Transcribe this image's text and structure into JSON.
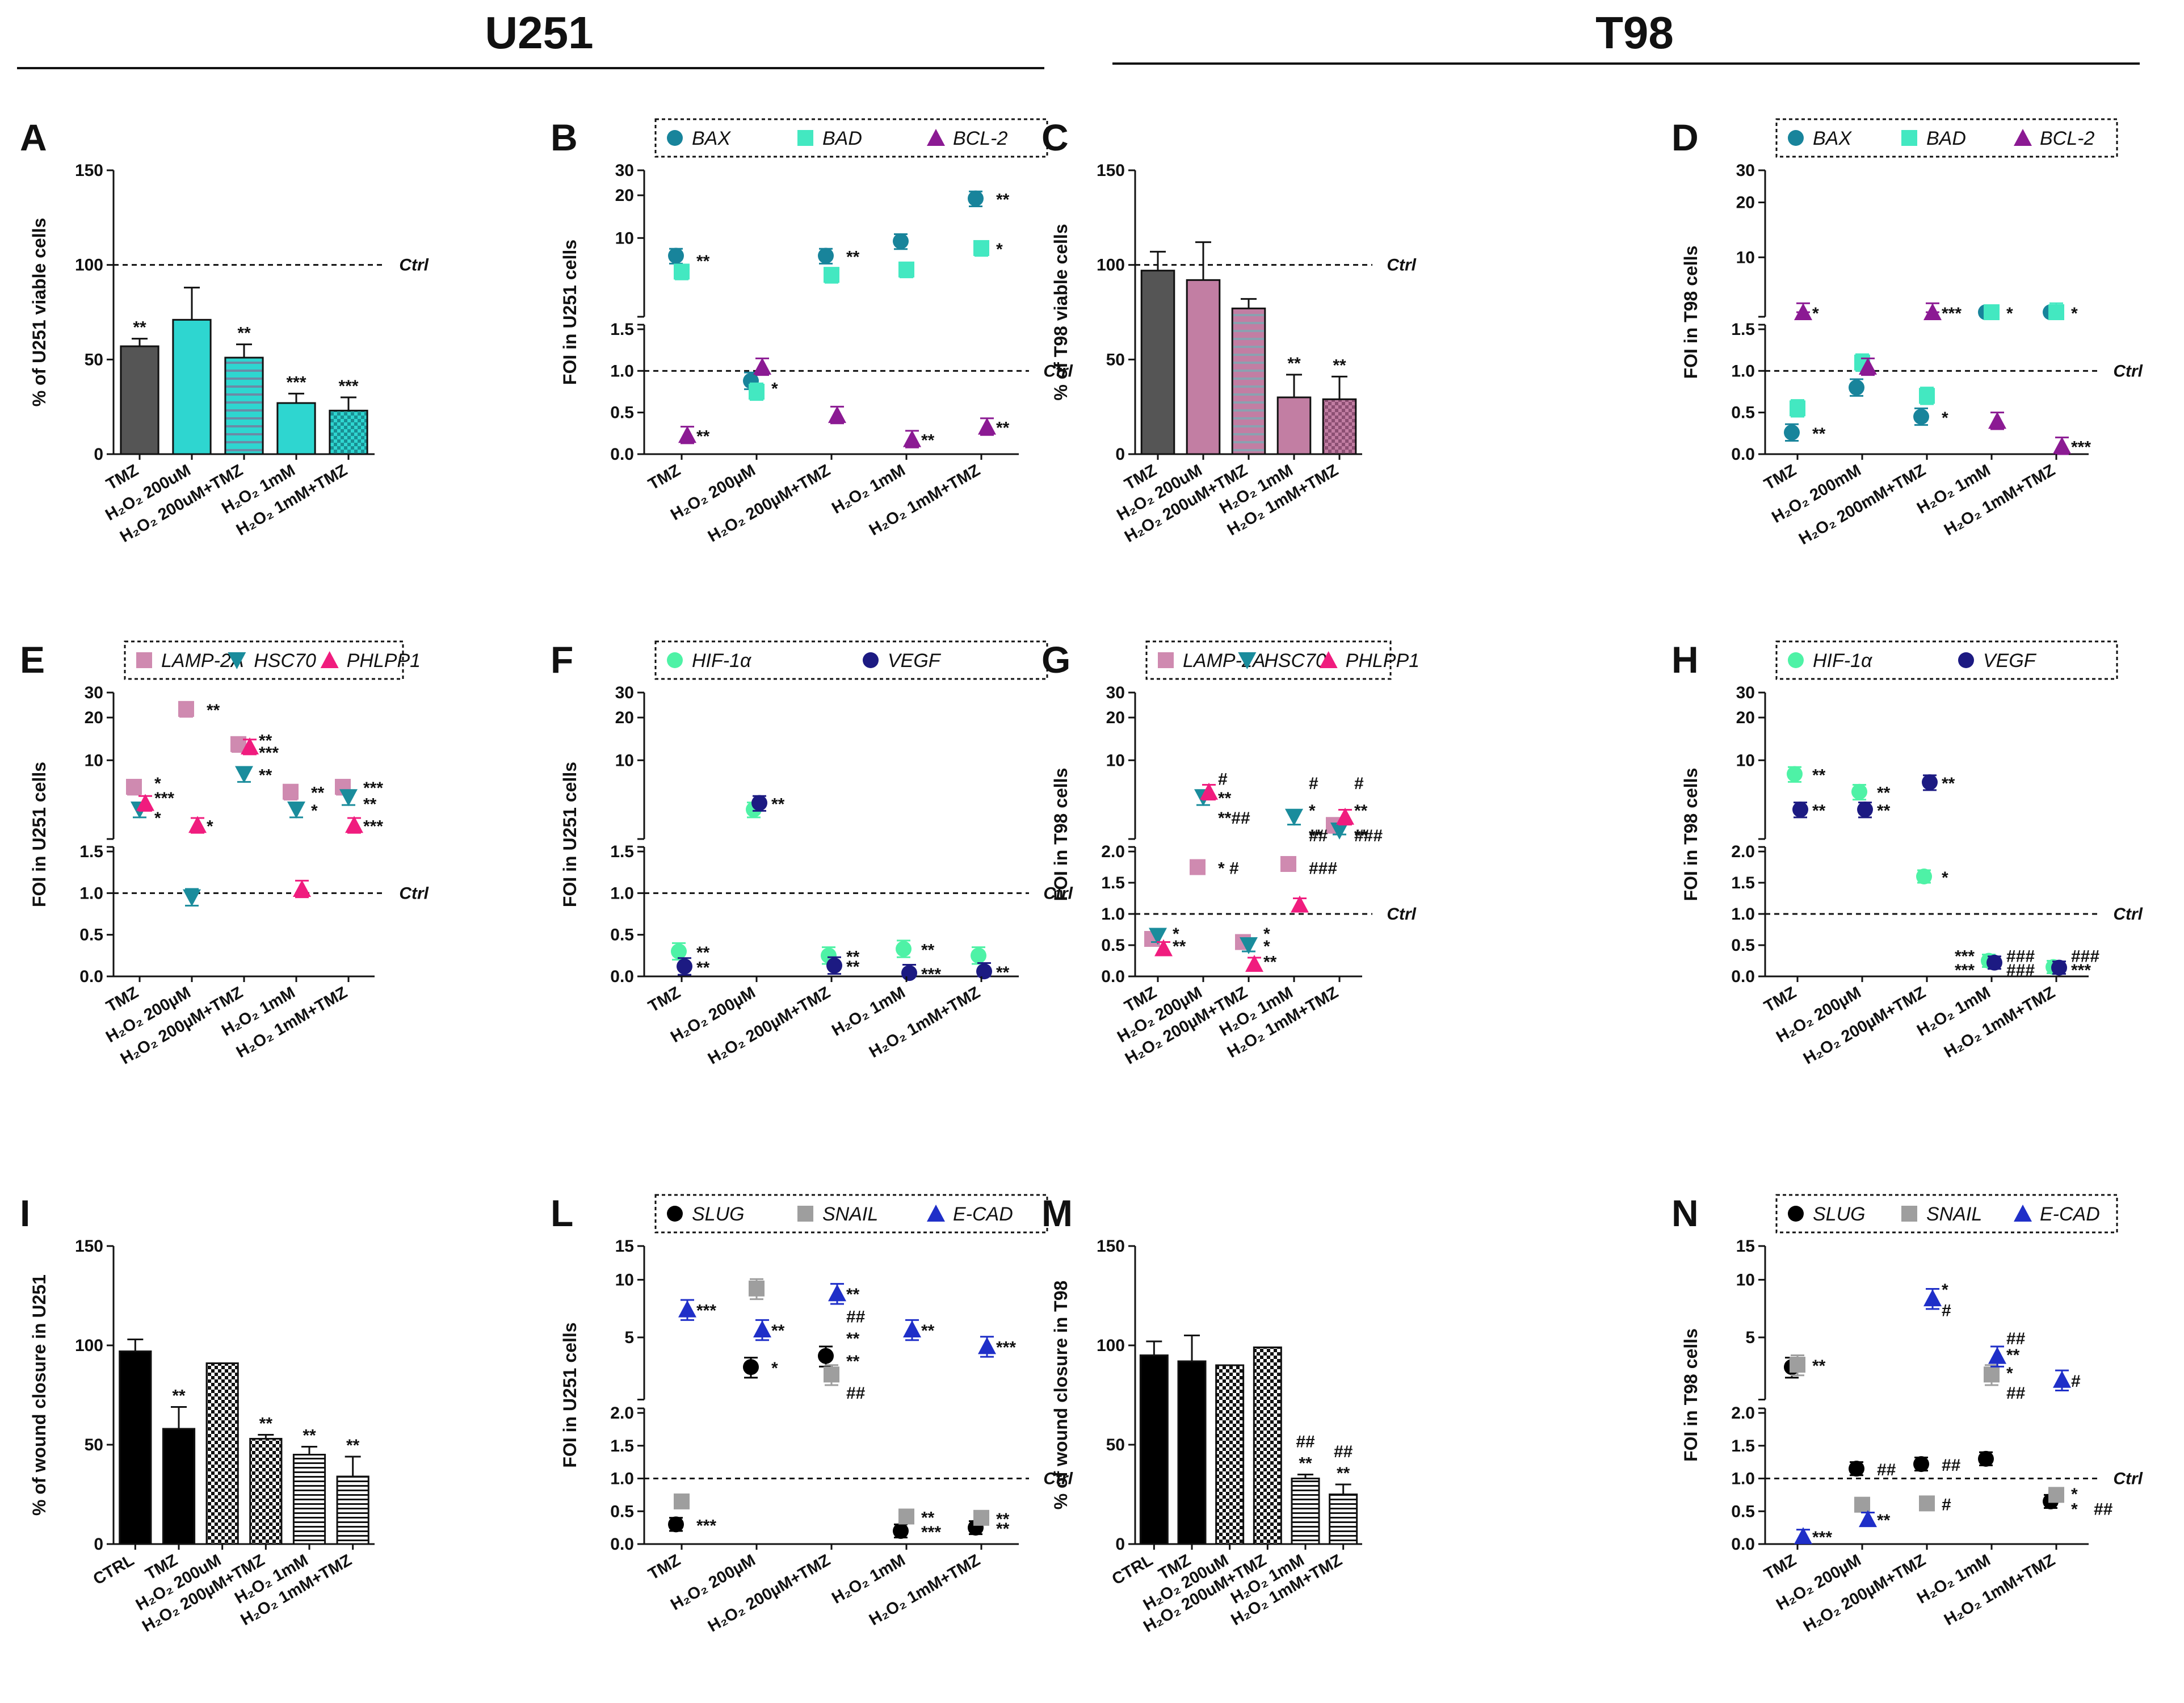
{
  "headers": {
    "left": "U251",
    "right": "T98"
  },
  "ctrl_label": "Ctrl",
  "colors": {
    "bar_gray": "#555555",
    "cyan": "#2ed6d0",
    "pink": "#c27ea3",
    "black": "#000000",
    "BAX": "#18849b",
    "BAD": "#43e8c1",
    "BCL-2": "#8b1a93",
    "LAMP-2A": "#cf8ab0",
    "HSC70": "#1a8c9c",
    "PHLPP1": "#f01c7e",
    "HIF-1a": "#4ef2a6",
    "VEGF": "#1c1a82",
    "SLUG": "#000000",
    "SNAIL": "#9e9e9e",
    "E-CAD": "#1f2fc8"
  },
  "chart_data": [
    {
      "letter": "A",
      "type": "bar",
      "ylabel": "% of U251 viable cells",
      "ylim": [
        0,
        150
      ],
      "yticks": [
        "0",
        "50",
        "100",
        "150"
      ],
      "ctrl_line": 100,
      "categories": [
        "TMZ",
        "H2O2 200uM",
        "H2O2 200uM+TMZ",
        "H2O2 1mM",
        "H2O2 1mM+TMZ"
      ],
      "values": [
        57,
        71,
        51,
        27,
        23
      ],
      "errors": [
        4,
        17,
        7,
        5,
        7
      ],
      "sig": [
        "**",
        "",
        "**",
        "***",
        "***"
      ],
      "fills": [
        "gray",
        "cyan",
        "cyan-hatch",
        "cyan",
        "cyan-check"
      ]
    },
    {
      "letter": "B",
      "type": "scatter",
      "ylabel": "FOI in U251 cells",
      "legend": [
        "BAX",
        "BAD",
        "BCL-2"
      ],
      "categories": [
        "TMZ",
        "H2O2 200µM",
        "H2O2 200µM+TMZ",
        "H2O2 1mM",
        "H2O2 1mM+TMZ"
      ],
      "series": [
        {
          "name": "BAX",
          "values": [
            7.5,
            0.88,
            7.5,
            9.5,
            19
          ]
        },
        {
          "name": "BAD",
          "values": [
            5.8,
            0.75,
            5.5,
            6.0,
            8.5
          ]
        },
        {
          "name": "BCL-2",
          "values": [
            0.23,
            1.05,
            0.47,
            0.18,
            0.33
          ]
        }
      ],
      "sig": [
        {
          "cat": 0,
          "y": 7,
          "t": "**"
        },
        {
          "cat": 1,
          "y": 0.8,
          "t": "*"
        },
        {
          "cat": 2,
          "y": 7.5,
          "t": "**"
        },
        {
          "cat": 4,
          "y": 19,
          "t": "**"
        },
        {
          "cat": 4,
          "y": 8.5,
          "t": "*"
        },
        {
          "cat": 0,
          "y": 0.23,
          "t": "**"
        },
        {
          "cat": 3,
          "y": 0.18,
          "t": "**"
        },
        {
          "cat": 4,
          "y": 0.33,
          "t": "**"
        }
      ]
    },
    {
      "letter": "C",
      "type": "bar",
      "ylabel": "% of T98 viable cells",
      "ylim": [
        0,
        150
      ],
      "yticks": [
        "0",
        "50",
        "100",
        "150"
      ],
      "ctrl_line": 100,
      "categories": [
        "TMZ",
        "H2O2 200uM",
        "H2O2 200uM+TMZ",
        "H2O2 1mM",
        "H2O2 1mM+TMZ"
      ],
      "values": [
        97,
        92,
        77,
        30,
        29
      ],
      "errors": [
        10,
        20,
        5,
        12,
        12
      ],
      "sig": [
        "",
        "",
        "",
        "**",
        "**"
      ],
      "fills": [
        "gray",
        "pink",
        "pink-hatch",
        "pink",
        "pink-check"
      ]
    },
    {
      "letter": "D",
      "type": "scatter",
      "ylabel": "FOI in T98 cells",
      "legend": [
        "BAX",
        "BAD",
        "BCL-2"
      ],
      "categories": [
        "TMZ",
        "H2O2 200mM",
        "H2O2 200mM+TMZ",
        "H2O2 1mM",
        "H2O2 1mM+TMZ"
      ],
      "series": [
        {
          "name": "BAX",
          "values": [
            0.26,
            0.8,
            0.45,
            3.8,
            4.0
          ]
        },
        {
          "name": "BAD",
          "values": [
            0.55,
            1.1,
            0.7,
            4.2,
            5.0
          ]
        },
        {
          "name": "BCL-2",
          "values": [
            5.0,
            1.05,
            5.0,
            0.4,
            0.1
          ]
        }
      ],
      "sig": [
        {
          "cat": 0,
          "y": 0.26,
          "t": "**"
        },
        {
          "cat": 2,
          "y": 0.45,
          "t": "*"
        },
        {
          "cat": 3,
          "y": 3.8,
          "t": "*"
        },
        {
          "cat": 4,
          "y": 4,
          "t": "*"
        },
        {
          "cat": 0,
          "y": 5,
          "t": "*"
        },
        {
          "cat": 2,
          "y": 5,
          "t": "***"
        },
        {
          "cat": 4,
          "y": 0.1,
          "t": "***"
        }
      ]
    },
    {
      "letter": "E",
      "type": "scatter",
      "ylabel": "FOI in U251 cells",
      "legend": [
        "LAMP-2A",
        "HSC70",
        "PHLPP1"
      ],
      "categories": [
        "TMZ",
        "H2O2 200µM",
        "H2O2 200µM+TMZ",
        "H2O2 1mM",
        "H2O2 1mM+TMZ"
      ],
      "series": [
        {
          "name": "LAMP-2A",
          "values": [
            6.5,
            23,
            13,
            6,
            6.5
          ]
        },
        {
          "name": "HSC70",
          "values": [
            4.5,
            0.95,
            8,
            4.5,
            5.5
          ]
        },
        {
          "name": "PHLPP1",
          "values": [
            5.0,
            3.5,
            12.5,
            1.05,
            3.5
          ]
        }
      ],
      "sig": [
        {
          "cat": 0,
          "y": 7,
          "t": "*"
        },
        {
          "cat": 0,
          "y": 5.5,
          "t": "***"
        },
        {
          "cat": 0,
          "y": 4,
          "t": "*"
        },
        {
          "cat": 1,
          "y": 23,
          "t": "**"
        },
        {
          "cat": 1,
          "y": 3.5,
          "t": "*"
        },
        {
          "cat": 2,
          "y": 14,
          "t": "**"
        },
        {
          "cat": 2,
          "y": 11.5,
          "t": "***"
        },
        {
          "cat": 2,
          "y": 8,
          "t": "**"
        },
        {
          "cat": 3,
          "y": 6,
          "t": "**"
        },
        {
          "cat": 3,
          "y": 4.5,
          "t": "*"
        },
        {
          "cat": 4,
          "y": 6.5,
          "t": "***"
        },
        {
          "cat": 4,
          "y": 5,
          "t": "**"
        },
        {
          "cat": 4,
          "y": 3.5,
          "t": "***"
        }
      ]
    },
    {
      "letter": "F",
      "type": "scatter",
      "ylabel": "FOI in U251 cells",
      "legend": [
        "HIF-1α",
        "VEGF"
      ],
      "categories": [
        "TMZ",
        "H2O2 200µM",
        "H2O2 200µM+TMZ",
        "H2O2 1mM",
        "H2O2 1mM+TMZ"
      ],
      "series": [
        {
          "name": "HIF-1α",
          "values": [
            0.3,
            4.5,
            0.25,
            0.33,
            0.25
          ]
        },
        {
          "name": "VEGF",
          "values": [
            0.12,
            5.0,
            0.13,
            0.04,
            0.06
          ]
        }
      ],
      "sig": [
        {
          "cat": 0,
          "y": 0.3,
          "t": "**"
        },
        {
          "cat": 0,
          "y": 0.12,
          "t": "**"
        },
        {
          "cat": 1,
          "y": 5,
          "t": "**"
        },
        {
          "cat": 2,
          "y": 0.25,
          "t": "**"
        },
        {
          "cat": 2,
          "y": 0.13,
          "t": "**"
        },
        {
          "cat": 3,
          "y": 0.33,
          "t": "**"
        },
        {
          "cat": 3,
          "y": 0.04,
          "t": "***"
        },
        {
          "cat": 4,
          "y": 0.06,
          "t": "**"
        }
      ]
    },
    {
      "letter": "G",
      "type": "scatter",
      "ylabel": "FOI in T98 cells",
      "legend": [
        "LAMP-2A",
        "HSC70",
        "PHLPP1"
      ],
      "categories": [
        "TMZ",
        "H2O2 200µM",
        "H2O2 200µM+TMZ",
        "H2O2 1mM",
        "H2O2 1mM+TMZ"
      ],
      "series": [
        {
          "name": "LAMP-2A",
          "values": [
            0.6,
            1.75,
            0.55,
            1.8,
            3.5
          ]
        },
        {
          "name": "HSC70",
          "values": [
            0.65,
            5.5,
            0.5,
            4.0,
            3.2
          ]
        },
        {
          "name": "PHLPP1",
          "values": [
            0.45,
            6.0,
            0.2,
            1.15,
            4.0
          ]
        }
      ],
      "sig": [
        {
          "cat": 0,
          "y": 0.7,
          "t": "*"
        },
        {
          "cat": 0,
          "y": 0.5,
          "t": "**"
        },
        {
          "cat": 1,
          "y": 7.5,
          "t": "#"
        },
        {
          "cat": 1,
          "y": 5.5,
          "t": "**"
        },
        {
          "cat": 1,
          "y": 4,
          "t": "**##"
        },
        {
          "cat": 1,
          "y": 1.75,
          "t": "* #"
        },
        {
          "cat": 2,
          "y": 0.7,
          "t": "*"
        },
        {
          "cat": 2,
          "y": 0.5,
          "t": "*"
        },
        {
          "cat": 2,
          "y": 0.25,
          "t": "**"
        },
        {
          "cat": 3,
          "y": 7,
          "t": "#"
        },
        {
          "cat": 3,
          "y": 4.5,
          "t": "*"
        },
        {
          "cat": 3,
          "y": 3,
          "t": "**"
        },
        {
          "cat": 3,
          "y": 2.1,
          "t": "##"
        },
        {
          "cat": 3,
          "y": 1.75,
          "t": "###"
        },
        {
          "cat": 4,
          "y": 7,
          "t": "#"
        },
        {
          "cat": 4,
          "y": 4.5,
          "t": "**"
        },
        {
          "cat": 4,
          "y": 3,
          "t": "**"
        },
        {
          "cat": 4,
          "y": 2.1,
          "t": "###"
        }
      ]
    },
    {
      "letter": "H",
      "type": "scatter",
      "ylabel": "FOI in T98 cells",
      "legend": [
        "HIF-1α",
        "VEGF"
      ],
      "categories": [
        "TMZ",
        "H2O2 200µM",
        "H2O2 200µM+TMZ",
        "H2O2 1mM",
        "H2O2 1mM+TMZ"
      ],
      "series": [
        {
          "name": "HIF-1α",
          "values": [
            8,
            6,
            1.6,
            0.25,
            0.15
          ]
        },
        {
          "name": "VEGF",
          "values": [
            4.5,
            4.5,
            7.0,
            0.22,
            0.14
          ]
        }
      ],
      "sig": [
        {
          "cat": 0,
          "y": 8,
          "t": "**"
        },
        {
          "cat": 0,
          "y": 4.5,
          "t": "**"
        },
        {
          "cat": 1,
          "y": 6,
          "t": "**"
        },
        {
          "cat": 1,
          "y": 4.5,
          "t": "**"
        },
        {
          "cat": 2,
          "y": 7,
          "t": "**"
        },
        {
          "cat": 2,
          "y": 1.6,
          "t": "*"
        },
        {
          "cat": 3,
          "y": 0.34,
          "t": "***",
          "side": "left"
        },
        {
          "cat": 3,
          "y": 0.12,
          "t": "***",
          "side": "left"
        },
        {
          "cat": 3,
          "y": 0.34,
          "t": "###"
        },
        {
          "cat": 3,
          "y": 0.12,
          "t": "###"
        },
        {
          "cat": 4,
          "y": 0.34,
          "t": "###"
        },
        {
          "cat": 4,
          "y": 0.12,
          "t": "***"
        }
      ]
    },
    {
      "letter": "I",
      "type": "bar",
      "ylabel": "% of wound closure in U251",
      "ylim": [
        0,
        150
      ],
      "yticks": [
        "0",
        "50",
        "100",
        "150"
      ],
      "categories": [
        "CTRL",
        "TMZ",
        "H2O2 200uM",
        "H2O2 200µM+TMZ",
        "H2O2 1mM",
        "H2O2 1mM+TMZ"
      ],
      "values": [
        97,
        58,
        91,
        53,
        45,
        34
      ],
      "errors": [
        6,
        11,
        0,
        2,
        4,
        10
      ],
      "sig": [
        "",
        "**",
        "",
        "**",
        "**",
        "**"
      ],
      "fills": [
        "black",
        "black",
        "check",
        "check",
        "lines",
        "lines"
      ]
    },
    {
      "letter": "L",
      "type": "scatter",
      "ylabel": "FOI in U251 cells",
      "legend": [
        "SLUG",
        "SNAIL",
        "E-CAD"
      ],
      "categories": [
        "TMZ",
        "H2O2 200µM",
        "H2O2 200µM+TMZ",
        "H2O2 1mM",
        "H2O2 1mM+TMZ"
      ],
      "series": [
        {
          "name": "SLUG",
          "values": [
            0.3,
            3.5,
            4.0,
            0.2,
            0.25
          ]
        },
        {
          "name": "SNAIL",
          "values": [
            0.65,
            9.0,
            3.2,
            0.42,
            0.4
          ]
        },
        {
          "name": "E-CAD",
          "values": [
            7.0,
            5.5,
            8.5,
            5.5,
            4.5
          ]
        }
      ],
      "sig": [
        {
          "cat": 0,
          "y": 7,
          "t": "***"
        },
        {
          "cat": 0,
          "y": 0.3,
          "t": "***"
        },
        {
          "cat": 1,
          "y": 5.5,
          "t": "**"
        },
        {
          "cat": 1,
          "y": 3.5,
          "t": "*"
        },
        {
          "cat": 2,
          "y": 8.5,
          "t": "**"
        },
        {
          "cat": 2,
          "y": 6.5,
          "t": "##"
        },
        {
          "cat": 2,
          "y": 5,
          "t": "**"
        },
        {
          "cat": 2,
          "y": 3.8,
          "t": "**"
        },
        {
          "cat": 2,
          "y": 2.6,
          "t": "##"
        },
        {
          "cat": 3,
          "y": 5.5,
          "t": "**"
        },
        {
          "cat": 3,
          "y": 0.42,
          "t": "**"
        },
        {
          "cat": 3,
          "y": 0.2,
          "t": "***"
        },
        {
          "cat": 4,
          "y": 4.5,
          "t": "***"
        },
        {
          "cat": 4,
          "y": 0.4,
          "t": "**"
        },
        {
          "cat": 4,
          "y": 0.25,
          "t": "**"
        }
      ]
    },
    {
      "letter": "M",
      "type": "bar",
      "ylabel": "% of wound closure in T98",
      "ylim": [
        0,
        150
      ],
      "yticks": [
        "0",
        "50",
        "100",
        "150"
      ],
      "categories": [
        "CTRL",
        "TMZ",
        "H2O2 200uM",
        "H2O2 200uM+TMZ",
        "H2O2 1mM",
        "H2O2 1mM+TMZ"
      ],
      "values": [
        95,
        92,
        90,
        99,
        33,
        25
      ],
      "errors": [
        7,
        13,
        0,
        0,
        2,
        5
      ],
      "sig": [
        "",
        "",
        "",
        "",
        "**",
        "**"
      ],
      "sig2": [
        "",
        "",
        "",
        "",
        "##",
        "##"
      ],
      "fills": [
        "black",
        "black",
        "check",
        "check",
        "lines",
        "lines"
      ]
    },
    {
      "letter": "N",
      "type": "scatter",
      "ylabel": "FOI in T98 cells",
      "legend": [
        "SLUG",
        "SNAIL",
        "E-CAD"
      ],
      "categories": [
        "TMZ",
        "H2O2 200µM",
        "H2O2 200µM+TMZ",
        "H2O2 1mM",
        "H2O2 1mM+TMZ"
      ],
      "series": [
        {
          "name": "SLUG",
          "values": [
            3.5,
            1.15,
            1.22,
            1.3,
            0.65
          ]
        },
        {
          "name": "SNAIL",
          "values": [
            3.6,
            0.6,
            0.62,
            3.2,
            0.75
          ]
        },
        {
          "name": "E-CAD",
          "values": [
            0.12,
            0.38,
            8.0,
            4.0,
            3.0
          ]
        }
      ],
      "sig": [
        {
          "cat": 0,
          "y": 3.6,
          "t": "**"
        },
        {
          "cat": 0,
          "y": 0.12,
          "t": "***"
        },
        {
          "cat": 1,
          "y": 1.15,
          "t": "##"
        },
        {
          "cat": 1,
          "y": 0.38,
          "t": "**"
        },
        {
          "cat": 2,
          "y": 9,
          "t": "*"
        },
        {
          "cat": 2,
          "y": 7,
          "t": "#"
        },
        {
          "cat": 2,
          "y": 1.22,
          "t": "##"
        },
        {
          "cat": 2,
          "y": 0.62,
          "t": "#"
        },
        {
          "cat": 3,
          "y": 5,
          "t": "##"
        },
        {
          "cat": 3,
          "y": 4.1,
          "t": "**"
        },
        {
          "cat": 3,
          "y": 3.3,
          "t": "*"
        },
        {
          "cat": 3,
          "y": 2.6,
          "t": "##"
        },
        {
          "cat": 4,
          "y": 3,
          "t": "#"
        },
        {
          "cat": 4,
          "y": 0.78,
          "t": "*"
        },
        {
          "cat": 4,
          "y": 0.55,
          "t": "*"
        },
        {
          "cat": 4,
          "y": 0.55,
          "t": "##",
          "dx": 40
        }
      ]
    }
  ]
}
